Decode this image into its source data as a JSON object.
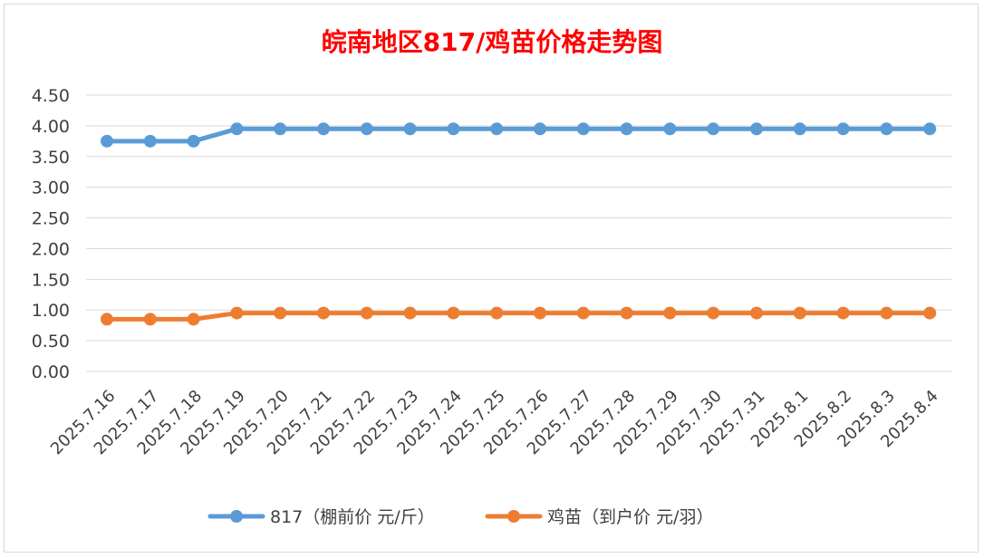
{
  "chart_data": {
    "type": "line",
    "title": "皖南地区817/鸡苗价格走势图",
    "categories": [
      "2025.7.16",
      "2025.7.17",
      "2025.7.18",
      "2025.7.19",
      "2025.7.20",
      "2025.7.21",
      "2025.7.22",
      "2025.7.23",
      "2025.7.24",
      "2025.7.25",
      "2025.7.26",
      "2025.7.27",
      "2025.7.28",
      "2025.7.29",
      "2025.7.30",
      "2025.7.31",
      "2025.8.1",
      "2025.8.2",
      "2025.8.3",
      "2025.8.4"
    ],
    "series": [
      {
        "name": "817（棚前价 元/斤）",
        "color": "#5b9bd5",
        "values": [
          3.75,
          3.75,
          3.75,
          3.95,
          3.95,
          3.95,
          3.95,
          3.95,
          3.95,
          3.95,
          3.95,
          3.95,
          3.95,
          3.95,
          3.95,
          3.95,
          3.95,
          3.95,
          3.95,
          3.95
        ]
      },
      {
        "name": "鸡苗（到户价 元/羽）",
        "color": "#ed7d31",
        "values": [
          0.85,
          0.85,
          0.85,
          0.95,
          0.95,
          0.95,
          0.95,
          0.95,
          0.95,
          0.95,
          0.95,
          0.95,
          0.95,
          0.95,
          0.95,
          0.95,
          0.95,
          0.95,
          0.95,
          0.95
        ]
      }
    ],
    "yticks": [
      "0.00",
      "0.50",
      "1.00",
      "1.50",
      "2.00",
      "2.50",
      "3.00",
      "3.50",
      "4.00",
      "4.50"
    ],
    "ylim": [
      0,
      4.5
    ],
    "grid": true,
    "legend_position": "bottom"
  }
}
